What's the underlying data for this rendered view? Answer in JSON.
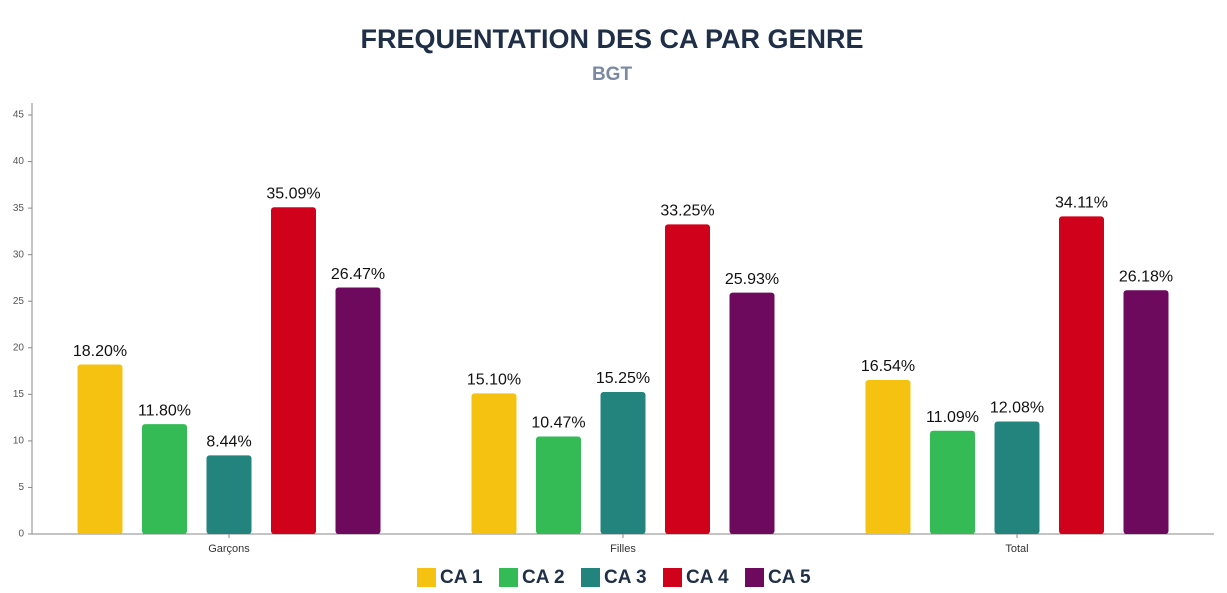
{
  "chart_data": {
    "type": "bar",
    "title": "FREQUENTATION DES CA PAR GENRE",
    "subtitle": "BGT",
    "categories": [
      "Garçons",
      "Filles",
      "Total"
    ],
    "series": [
      {
        "name": "CA 1",
        "color": "#f5c211",
        "values": [
          18.2,
          15.1,
          16.54
        ],
        "value_labels": [
          "18.20%",
          "15.10%",
          "16.54%"
        ]
      },
      {
        "name": "CA 2",
        "color": "#34bb55",
        "values": [
          11.8,
          10.47,
          11.09
        ],
        "value_labels": [
          "11.80%",
          "10.47%",
          "11.09%"
        ]
      },
      {
        "name": "CA 3",
        "color": "#23847e",
        "values": [
          8.44,
          15.25,
          12.08
        ],
        "value_labels": [
          "8.44%",
          "15.25%",
          "12.08%"
        ]
      },
      {
        "name": "CA 4",
        "color": "#d0021b",
        "values": [
          35.09,
          33.25,
          34.11
        ],
        "value_labels": [
          "35.09%",
          "33.25%",
          "34.11%"
        ]
      },
      {
        "name": "CA 5",
        "color": "#6d0a5e",
        "values": [
          26.47,
          25.93,
          26.18
        ],
        "value_labels": [
          "26.47%",
          "25.93%",
          "26.18%"
        ]
      }
    ],
    "ylim": [
      0,
      45
    ],
    "yticks": [
      0,
      5,
      10,
      15,
      20,
      25,
      30,
      35,
      40,
      45
    ],
    "legend": "bottom"
  }
}
